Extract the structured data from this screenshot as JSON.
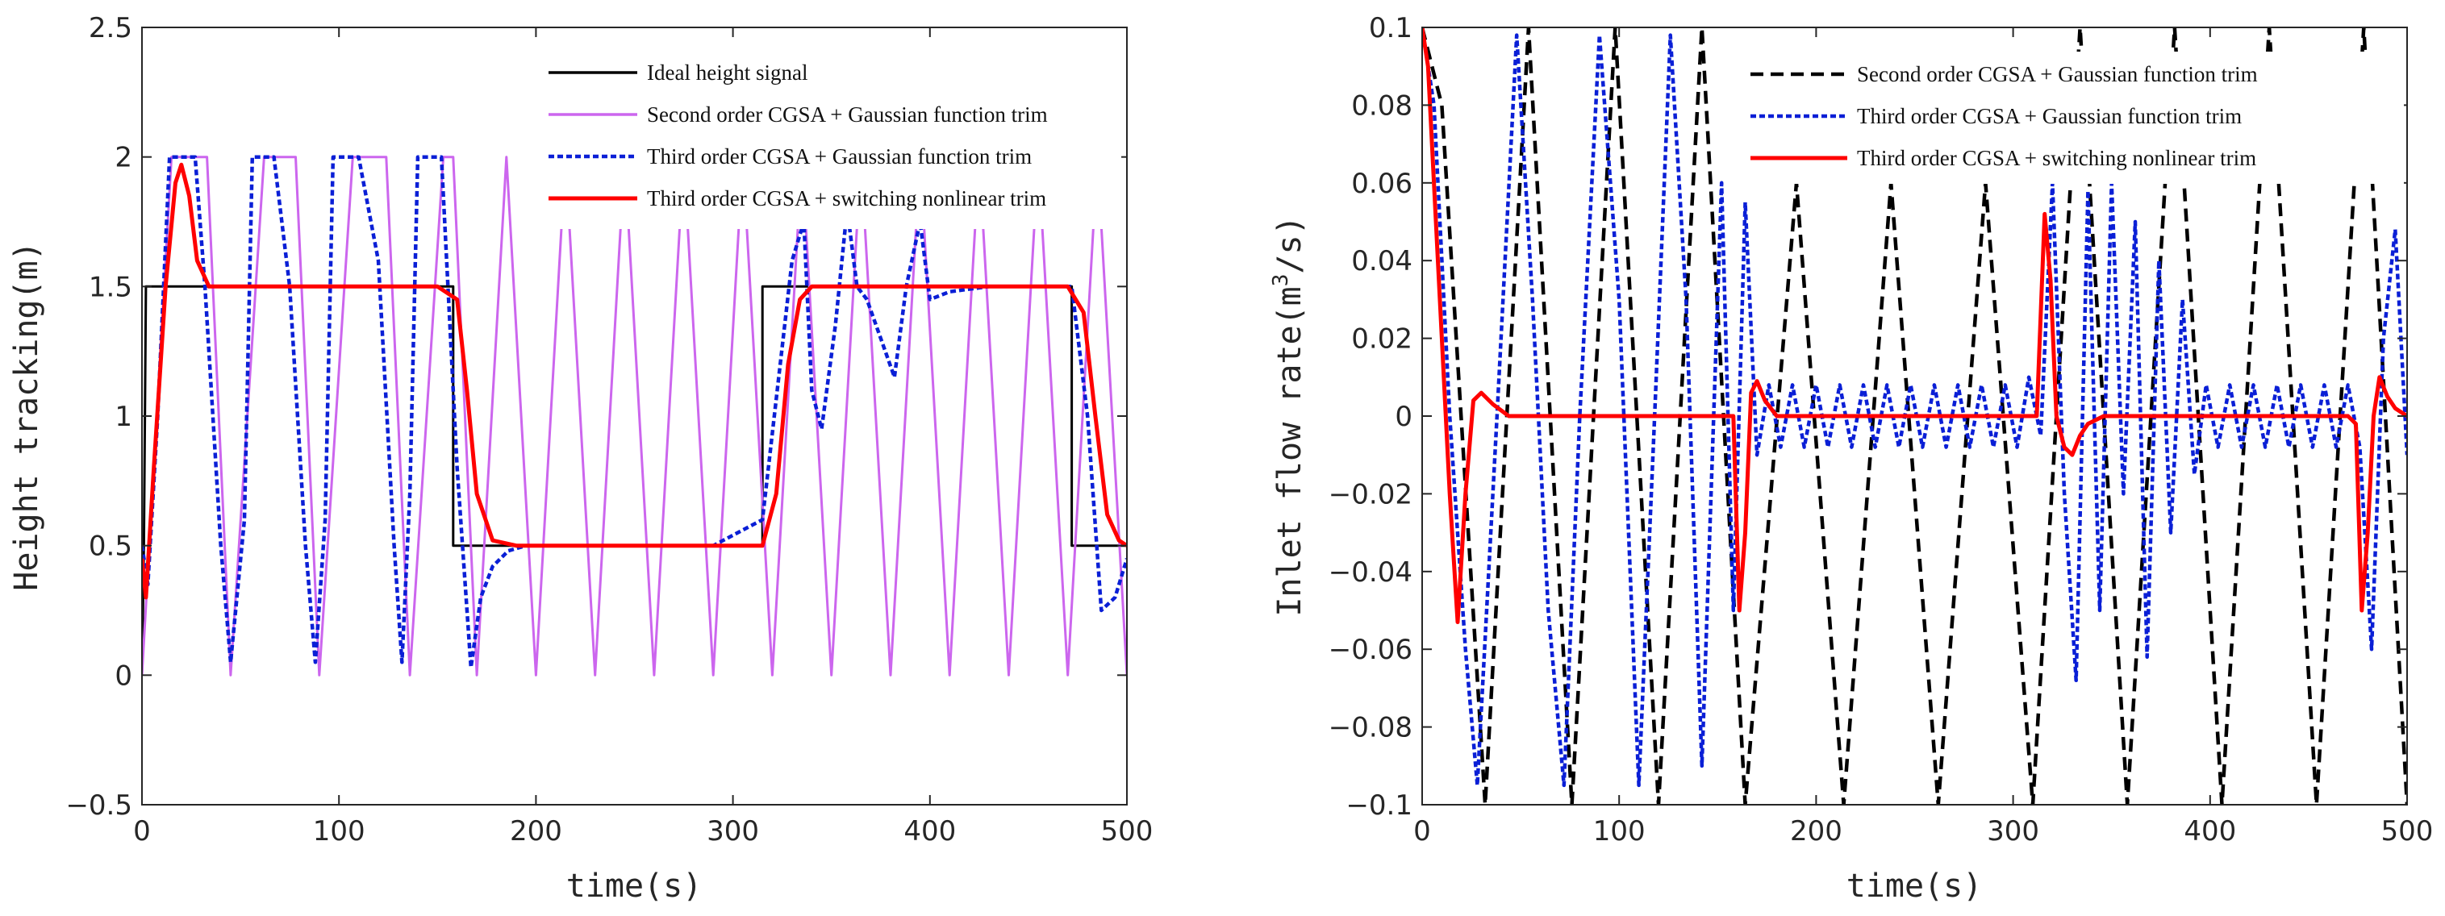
{
  "chart_data": [
    {
      "type": "line",
      "title": "",
      "xlabel": "time(s)",
      "ylabel": "Height tracking(m)",
      "xlim": [
        0,
        500
      ],
      "ylim": [
        -0.5,
        2.5
      ],
      "xticks": [
        0,
        100,
        200,
        300,
        400,
        500
      ],
      "yticks": [
        -0.5,
        0,
        0.5,
        1,
        1.5,
        2,
        2.5
      ],
      "xtick_labels": [
        "0",
        "100",
        "200",
        "300",
        "400",
        "500"
      ],
      "ytick_labels": [
        "-0.5",
        "0",
        "0.5",
        "1",
        "1.5",
        "2",
        "2.5"
      ],
      "legend_position": "top-right",
      "grid": false,
      "series": [
        {
          "name": "Ideal height signal",
          "color": "#000000",
          "style": "solid",
          "x": [
            0,
            1,
            2,
            158,
            158,
            315,
            315,
            472,
            472,
            500
          ],
          "y": [
            0,
            0.5,
            1.5,
            1.5,
            0.5,
            0.5,
            1.5,
            1.5,
            0.5,
            0.5
          ]
        },
        {
          "name": "Second order CGSA + Gaussian function trim",
          "color": "#cc66ee",
          "style": "solid",
          "x": [
            0,
            15,
            22,
            33,
            45,
            62,
            66,
            78,
            90,
            107,
            112,
            124,
            136,
            153,
            158,
            170,
            185,
            200,
            215,
            230,
            245,
            260,
            275,
            290,
            305,
            320,
            335,
            350,
            365,
            380,
            395,
            410,
            425,
            440,
            455,
            470,
            485,
            500
          ],
          "y": [
            0,
            2,
            2,
            2,
            0,
            2,
            2,
            2,
            0,
            2,
            2,
            2,
            0,
            2,
            2,
            0,
            2,
            0,
            2,
            0,
            2,
            0,
            2,
            0,
            2,
            0,
            2,
            0,
            2,
            0,
            2,
            0,
            2,
            0,
            2,
            0,
            2,
            0
          ]
        },
        {
          "name": "Third order CGSA + Gaussian function trim",
          "color": "#0a1fd6",
          "style": "dashed",
          "x": [
            0,
            3,
            8,
            14,
            19,
            27,
            32,
            40,
            45,
            52,
            56,
            59,
            67,
            75,
            83,
            88,
            93,
            97,
            100,
            110,
            120,
            128,
            132,
            136,
            140,
            144,
            152,
            160,
            167,
            172,
            178,
            186,
            195,
            210,
            230,
            260,
            290,
            315,
            330,
            336,
            340,
            345,
            352,
            358,
            363,
            368,
            375,
            382,
            388,
            395,
            400,
            410,
            430,
            460,
            472,
            480,
            487,
            494,
            500
          ],
          "y": [
            0.5,
            0.35,
            1,
            2,
            2,
            2,
            1.5,
            0.5,
            0.05,
            0.6,
            2,
            2,
            2,
            1.5,
            0.5,
            0.05,
            0.6,
            2,
            2,
            2,
            1.6,
            0.5,
            0.05,
            0.7,
            2,
            2,
            2,
            0.8,
            0.03,
            0.3,
            0.42,
            0.48,
            0.5,
            0.5,
            0.5,
            0.5,
            0.5,
            0.6,
            1.6,
            1.75,
            1.1,
            0.95,
            1.35,
            1.8,
            1.5,
            1.45,
            1.3,
            1.15,
            1.5,
            1.75,
            1.45,
            1.48,
            1.5,
            1.5,
            1.5,
            1.0,
            0.25,
            0.3,
            0.45
          ]
        },
        {
          "name": "Third order CGSA + switching nonlinear trim",
          "color": "#ff0000",
          "style": "solid",
          "x": [
            0,
            2,
            6,
            12,
            17,
            20,
            24,
            28,
            34,
            40,
            60,
            100,
            150,
            160,
            165,
            170,
            178,
            190,
            220,
            280,
            315,
            322,
            328,
            334,
            340,
            360,
            420,
            470,
            478,
            484,
            490,
            496,
            500
          ],
          "y": [
            0.45,
            0.3,
            0.8,
            1.5,
            1.9,
            1.97,
            1.85,
            1.6,
            1.5,
            1.5,
            1.5,
            1.5,
            1.5,
            1.45,
            1.1,
            0.7,
            0.52,
            0.5,
            0.5,
            0.5,
            0.5,
            0.7,
            1.2,
            1.45,
            1.5,
            1.5,
            1.5,
            1.5,
            1.4,
            1.0,
            0.62,
            0.52,
            0.5
          ]
        }
      ]
    },
    {
      "type": "line",
      "title": "",
      "xlabel": "time(s)",
      "ylabel_main": "Inlet flow rate(m",
      "ylabel_sup": "3",
      "ylabel_end": "/s)",
      "xlim": [
        0,
        500
      ],
      "ylim": [
        -0.1,
        0.1
      ],
      "xticks": [
        0,
        100,
        200,
        300,
        400,
        500
      ],
      "yticks": [
        -0.1,
        -0.08,
        -0.06,
        -0.04,
        -0.02,
        0,
        0.02,
        0.04,
        0.06,
        0.08,
        0.1
      ],
      "xtick_labels": [
        "0",
        "100",
        "200",
        "300",
        "400",
        "500"
      ],
      "ytick_labels": [
        "-0.1",
        "-0.08",
        "-0.06",
        "-0.04",
        "-0.02",
        "0",
        "0.02",
        "0.04",
        "0.06",
        "0.08",
        "0.1"
      ],
      "legend_position": "top-right",
      "grid": false,
      "series": [
        {
          "name": "Second order CGSA + Gaussian function trim",
          "color": "#000000",
          "style": "dashed",
          "x": [
            0,
            10,
            32,
            54,
            76,
            98,
            120,
            142,
            164,
            190,
            214,
            238,
            262,
            286,
            310,
            334,
            358,
            382,
            406,
            430,
            454,
            478,
            500
          ],
          "y": [
            0.1,
            0.08,
            -0.1,
            0.1,
            -0.1,
            0.1,
            -0.1,
            0.1,
            -0.1,
            0.06,
            -0.1,
            0.06,
            -0.1,
            0.06,
            -0.1,
            0.1,
            -0.1,
            0.1,
            -0.1,
            0.1,
            -0.1,
            0.1,
            -0.1
          ]
        },
        {
          "name": "Third order CGSA + Gaussian function trim",
          "color": "#0a1fd6",
          "style": "dashed",
          "x": [
            0,
            6,
            14,
            22,
            28,
            38,
            48,
            56,
            64,
            72,
            80,
            90,
            100,
            110,
            118,
            126,
            134,
            142,
            148,
            152,
            158,
            164,
            170,
            176,
            182,
            188,
            194,
            200,
            206,
            212,
            218,
            224,
            230,
            236,
            242,
            248,
            254,
            260,
            266,
            272,
            278,
            284,
            290,
            296,
            302,
            308,
            314,
            320,
            326,
            332,
            338,
            344,
            350,
            356,
            362,
            368,
            374,
            380,
            386,
            392,
            398,
            404,
            410,
            416,
            422,
            428,
            434,
            440,
            446,
            452,
            458,
            464,
            470,
            476,
            482,
            488,
            494,
            500
          ],
          "y": [
            0.1,
            0.08,
            0.0,
            -0.06,
            -0.095,
            0.0,
            0.098,
            0.03,
            -0.05,
            -0.095,
            0.0,
            0.098,
            0.03,
            -0.095,
            0.0,
            0.098,
            0.03,
            -0.09,
            0.0,
            0.06,
            -0.05,
            0.055,
            -0.01,
            0.008,
            -0.008,
            0.008,
            -0.008,
            0.008,
            -0.008,
            0.008,
            -0.008,
            0.008,
            -0.008,
            0.008,
            -0.008,
            0.008,
            -0.008,
            0.008,
            -0.008,
            0.008,
            -0.008,
            0.008,
            -0.008,
            0.008,
            -0.008,
            0.01,
            -0.005,
            0.06,
            -0.02,
            -0.068,
            0.058,
            -0.05,
            0.06,
            -0.02,
            0.05,
            -0.062,
            0.04,
            -0.03,
            0.03,
            -0.015,
            0.008,
            -0.008,
            0.008,
            -0.008,
            0.008,
            -0.008,
            0.008,
            -0.008,
            0.008,
            -0.008,
            0.008,
            -0.008,
            0.008,
            -0.008,
            -0.06,
            0.02,
            0.048,
            -0.01
          ]
        },
        {
          "name": "Third order CGSA + switching nonlinear trim",
          "color": "#ff0000",
          "style": "solid",
          "x": [
            0,
            3,
            8,
            14,
            18,
            22,
            26,
            30,
            36,
            44,
            60,
            100,
            150,
            158,
            161,
            164,
            167,
            170,
            174,
            180,
            200,
            250,
            300,
            312,
            316,
            319,
            322,
            326,
            330,
            334,
            338,
            346,
            360,
            420,
            470,
            474,
            477,
            480,
            483,
            486,
            490,
            494,
            500
          ],
          "y": [
            0.1,
            0.09,
            0.04,
            -0.02,
            -0.053,
            -0.02,
            0.004,
            0.006,
            0.003,
            0.0,
            0.0,
            0.0,
            0.0,
            0.0,
            -0.05,
            -0.03,
            0.006,
            0.009,
            0.004,
            0.0,
            0.0,
            0.0,
            0.0,
            0.0,
            0.052,
            0.035,
            0.0,
            -0.008,
            -0.01,
            -0.005,
            -0.002,
            0.0,
            0.0,
            0.0,
            0.0,
            -0.002,
            -0.05,
            -0.03,
            0.0,
            0.01,
            0.005,
            0.002,
            0.0
          ]
        }
      ]
    }
  ]
}
